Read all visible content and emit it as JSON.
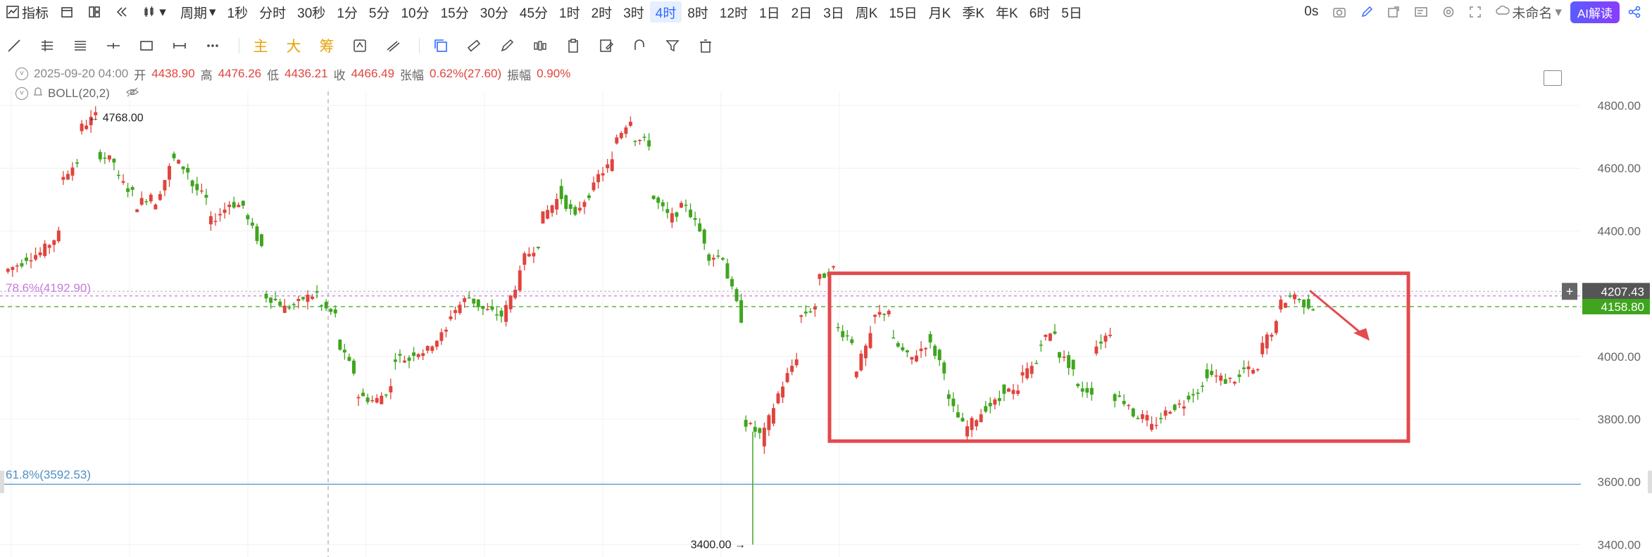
{
  "toolbar": {
    "indicator_label": "指标",
    "period_label": "周期",
    "intervals": [
      "1秒",
      "分时",
      "30秒",
      "1分",
      "5分",
      "10分",
      "15分",
      "30分",
      "45分",
      "1时",
      "2时",
      "3时",
      "4时",
      "8时",
      "12时",
      "1日",
      "2日",
      "3日",
      "周K",
      "15日",
      "月K",
      "季K",
      "年K",
      "6时",
      "5日"
    ],
    "active_interval": "4时",
    "seconds_label": "0s",
    "unnamed_label": "未命名",
    "ai_label": "AI解读"
  },
  "drawing_toolbar": {
    "main_label": "主",
    "big_label": "大",
    "chip_label": "筹"
  },
  "info": {
    "date": "2025-09-20 04:00",
    "open_label": "开",
    "open": "4438.90",
    "high_label": "高",
    "high": "4476.26",
    "low_label": "低",
    "low": "4436.21",
    "close_label": "收",
    "close": "4466.49",
    "change_label": "张幅",
    "change": "0.62%(27.60)",
    "amplitude_label": "振幅",
    "amplitude": "0.90%",
    "indicator": "BOLL(20,2)"
  },
  "chart_data": {
    "type": "candlestick",
    "y_ticks": [
      "4800.00",
      "4600.00",
      "4400.00",
      "4200.00",
      "4000.00",
      "3800.00",
      "3600.00",
      "3400.00"
    ],
    "ylim": [
      3330,
      4900
    ],
    "high_marker": "4768.00",
    "low_marker": "3400.00",
    "fib_786": "78.6%(4192.90)",
    "fib_618": "61.8%(3592.53)",
    "crosshair_price": "4207.43",
    "last_price": "4158.80",
    "colors": {
      "up": "#e0443d",
      "down": "#3fa51e",
      "fib786": "#c77ad9",
      "fib618": "#4e8fc4",
      "last": "#3fa51e",
      "box": "#e34a4f"
    },
    "waypoints": [
      [
        4270,
        4300
      ],
      [
        4310,
        4330
      ],
      [
        4330,
        4390
      ],
      [
        4560,
        4620
      ],
      [
        4720,
        4768
      ],
      [
        4650,
        4620
      ],
      [
        4580,
        4520
      ],
      [
        4470,
        4520
      ],
      [
        4460,
        4600
      ],
      [
        4640,
        4590
      ],
      [
        4560,
        4500
      ],
      [
        4420,
        4470
      ],
      [
        4490,
        4480
      ],
      [
        4460,
        4350
      ],
      [
        4200,
        4170
      ],
      [
        4150,
        4170
      ],
      [
        4180,
        4200
      ],
      [
        4170,
        4130
      ],
      [
        4050,
        3950
      ],
      [
        3880,
        3860
      ],
      [
        3850,
        3900
      ],
      [
        4000,
        3990
      ],
      [
        4010,
        4020
      ],
      [
        4030,
        4080
      ],
      [
        4120,
        4180
      ],
      [
        4200,
        4150
      ],
      [
        4150,
        4130
      ],
      [
        4120,
        4260
      ],
      [
        4300,
        4360
      ],
      [
        4430,
        4500
      ],
      [
        4530,
        4440
      ],
      [
        4460,
        4540
      ],
      [
        4560,
        4620
      ],
      [
        4680,
        4760
      ],
      [
        4700,
        4680
      ],
      [
        4520,
        4450
      ],
      [
        4430,
        4490
      ],
      [
        4480,
        4370
      ],
      [
        4320,
        4320
      ],
      [
        4300,
        4120
      ],
      [
        3800,
        3750
      ],
      [
        3720,
        3880
      ],
      [
        3880,
        4000
      ],
      [
        4120,
        4160
      ],
      [
        4240,
        4280
      ],
      [
        4100,
        4050
      ],
      [
        3930,
        4060
      ],
      [
        4120,
        4150
      ],
      [
        4060,
        4000
      ],
      [
        3980,
        4040
      ],
      [
        4060,
        3960
      ],
      [
        3880,
        3780
      ],
      [
        3760,
        3820
      ],
      [
        3830,
        3860
      ],
      [
        3900,
        3880
      ],
      [
        3930,
        3980
      ],
      [
        4040,
        4080
      ],
      [
        4020,
        3960
      ],
      [
        3900,
        3890
      ],
      [
        4020,
        4080
      ],
      [
        3880,
        3850
      ],
      [
        3820,
        3800
      ],
      [
        3760,
        3820
      ],
      [
        3830,
        3850
      ],
      [
        3870,
        3900
      ],
      [
        3950,
        3930
      ],
      [
        3920,
        3930
      ],
      [
        3960,
        3950
      ],
      [
        4020,
        4100
      ],
      [
        4160,
        4200
      ],
      [
        4180,
        4158
      ]
    ]
  }
}
